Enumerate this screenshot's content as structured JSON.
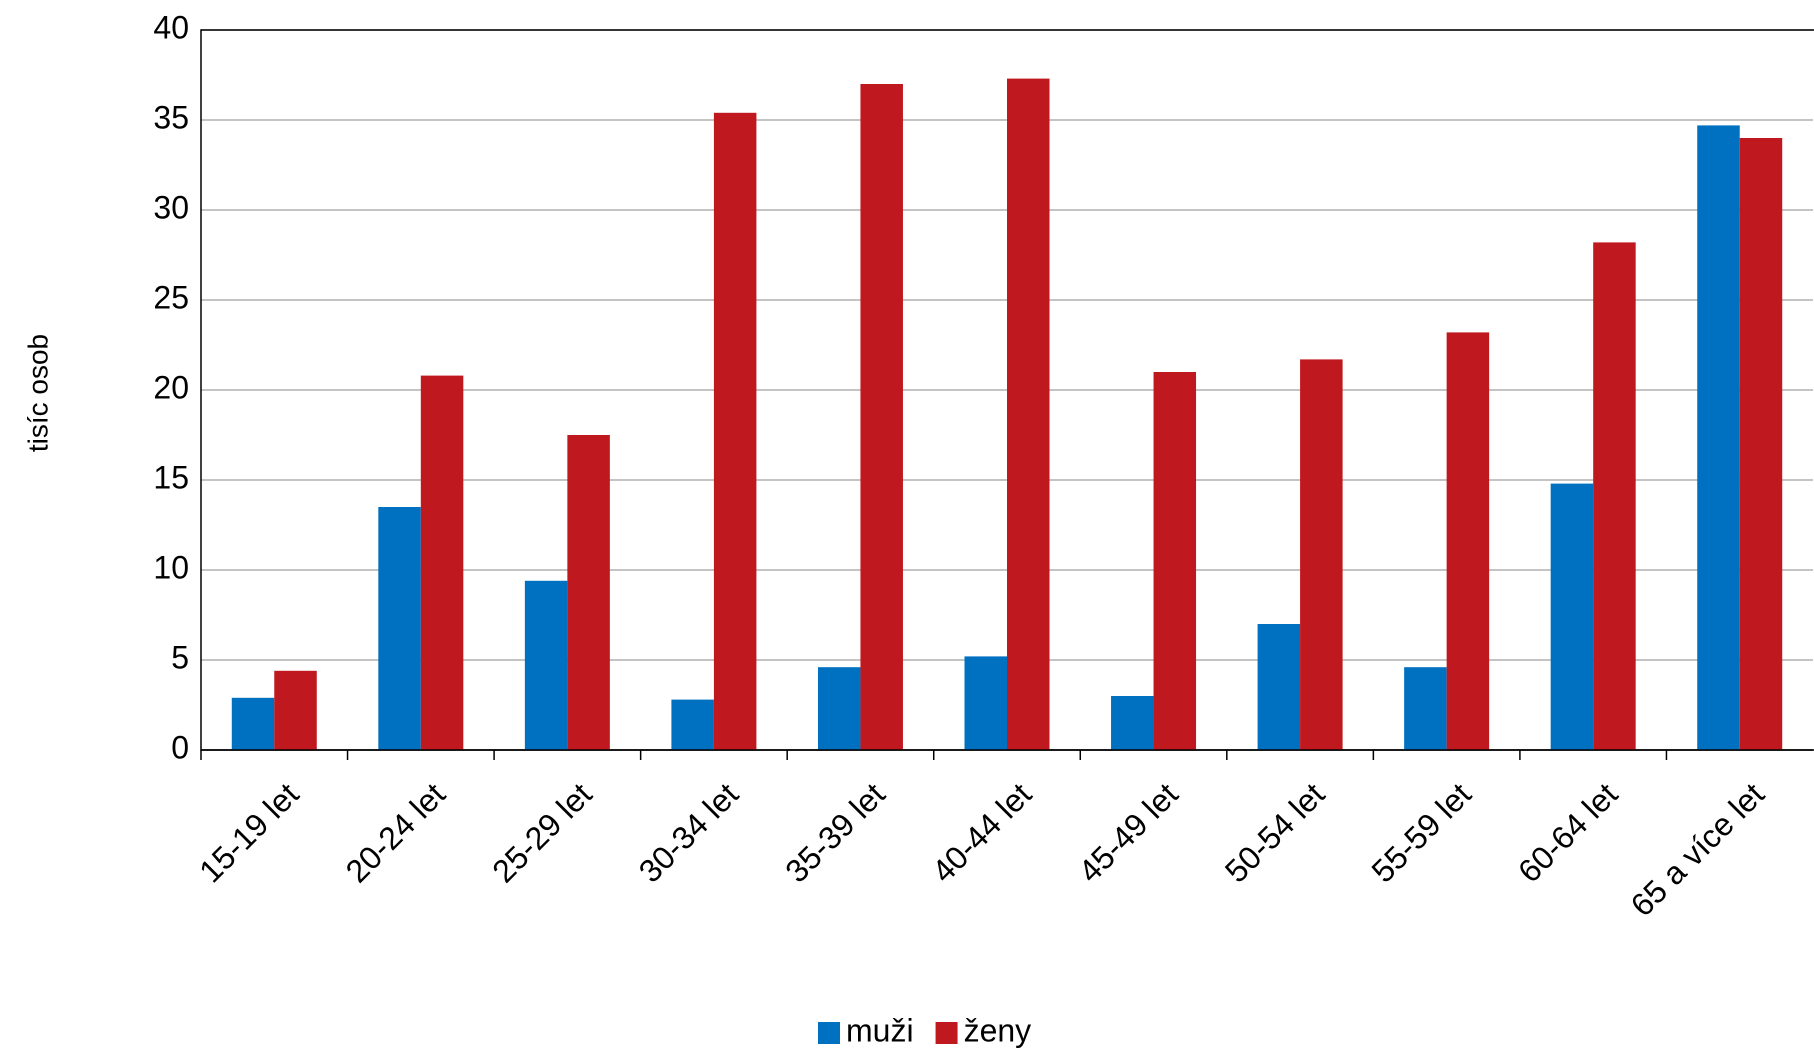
{
  "chart_data": {
    "type": "bar",
    "y_label": "tisíc osob",
    "categories": [
      "15-19 let",
      "20-24 let",
      "25-29 let",
      "30-34 let",
      "35-39 let",
      "40-44 let",
      "45-49 let",
      "50-54 let",
      "55-59 let",
      "60-64 let",
      "65 a více let"
    ],
    "series": [
      {
        "name": "muži",
        "color": "#0070c0",
        "values": [
          2.9,
          13.5,
          9.4,
          2.8,
          4.6,
          5.2,
          3.0,
          7.0,
          4.6,
          14.8,
          34.7
        ]
      },
      {
        "name": "ženy",
        "color": "#c0181f",
        "values": [
          4.4,
          20.8,
          17.5,
          35.4,
          37.0,
          37.3,
          21.0,
          21.7,
          23.2,
          28.2,
          34.0
        ]
      }
    ],
    "ylim": [
      0,
      40
    ],
    "yticks": [
      0,
      5,
      10,
      15,
      20,
      25,
      30,
      35,
      40
    ],
    "grid": true,
    "legend": "bottom"
  }
}
